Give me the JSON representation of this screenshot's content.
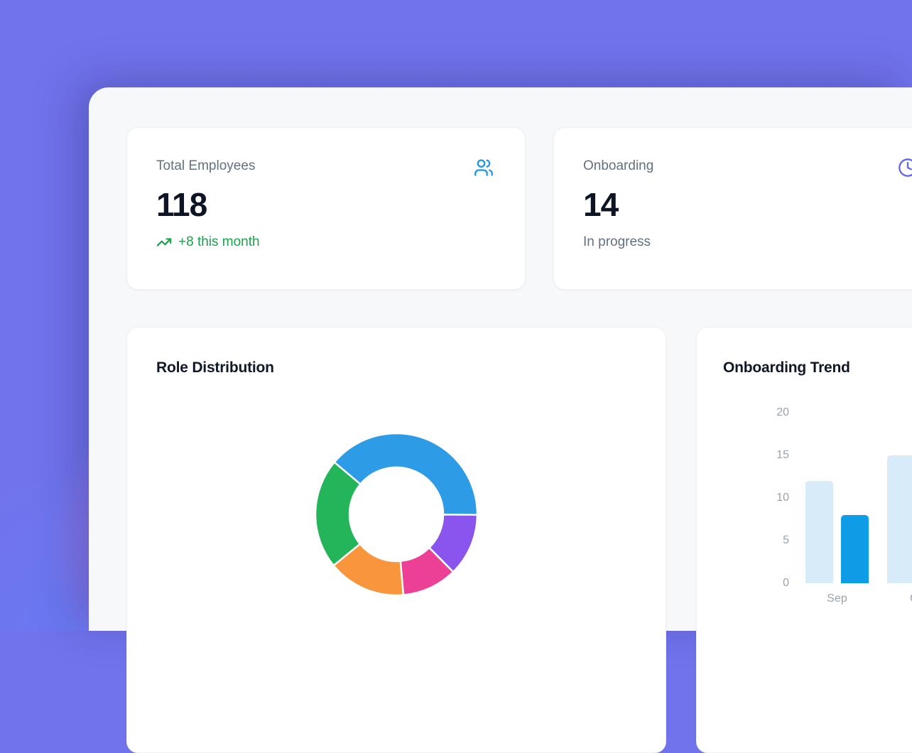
{
  "theme": {
    "background_purple": "#7173ec",
    "background_blob_pink": "#d87ee8",
    "panel_bg": "#f7f8fa",
    "card_bg": "#ffffff",
    "label_gray": "#64707e",
    "value_dark": "#0d1524",
    "delta_green": "#18a34a",
    "users_icon_blue": "#2095e8",
    "clock_icon_indigo": "#6466f0",
    "axis_gray": "#99a2ad"
  },
  "stat_cards": [
    {
      "label": "Total Employees",
      "value": "118",
      "delta_text": "+8 this month",
      "icon": "users-icon"
    },
    {
      "label": "Onboarding",
      "value": "14",
      "sub_text": "In progress",
      "icon": "clock-icon"
    }
  ],
  "chart_cards": [
    {
      "title": "Role Distribution"
    },
    {
      "title": "Onboarding Trend"
    }
  ],
  "chart_data": [
    {
      "type": "pie",
      "variant": "doughnut",
      "title": "Role Distribution",
      "legend": "none",
      "labels_visible": false,
      "start_angle_deg": -50,
      "cutout_percent": 58,
      "segments": [
        {
          "name": "blue",
          "color": "#2d9be6",
          "percent": 39.0
        },
        {
          "name": "purple",
          "color": "#8a55ec",
          "percent": 12.5
        },
        {
          "name": "pink",
          "color": "#ec3f96",
          "percent": 11.0
        },
        {
          "name": "orange",
          "color": "#f9953c",
          "percent": 15.5
        },
        {
          "name": "green",
          "color": "#24b45a",
          "percent": 22.0
        }
      ]
    },
    {
      "type": "bar",
      "title": "Onboarding Trend",
      "categories": [
        "Sep",
        "Oct"
      ],
      "series": [
        {
          "name": "series-light-blue",
          "color": "#d8ebf9",
          "values": [
            12,
            15
          ]
        },
        {
          "name": "series-dark-blue",
          "color": "#0d9ce5",
          "values": [
            8,
            null
          ]
        }
      ],
      "ylim": [
        0,
        20
      ],
      "yticks": [
        0,
        5,
        10,
        15,
        20
      ],
      "grid": false,
      "legend": "none"
    }
  ]
}
